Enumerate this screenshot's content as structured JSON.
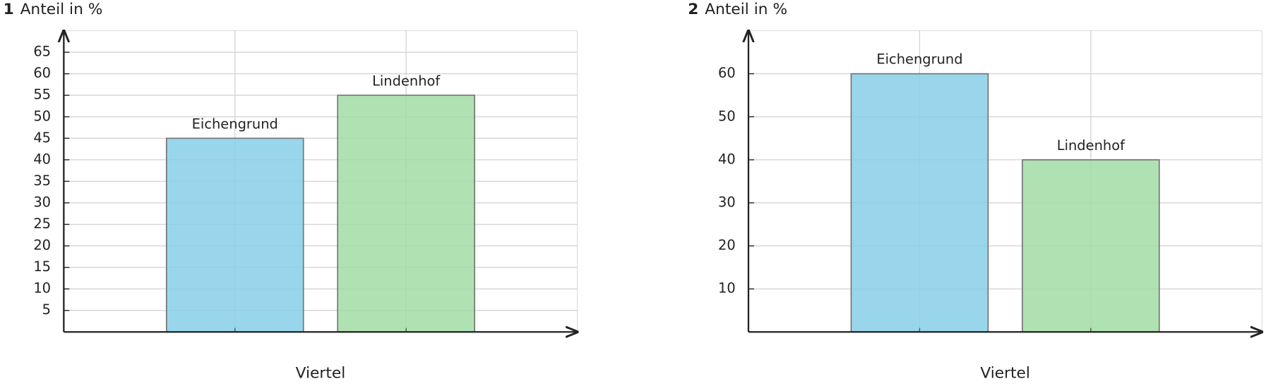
{
  "chart_data": [
    {
      "type": "bar",
      "number": "1",
      "title": "Anteil in %",
      "x_label": "Viertel",
      "categories": [
        "Eichengrund",
        "Lindenhof"
      ],
      "values": [
        45,
        55
      ],
      "colors": [
        "#87cfe9",
        "#a2dca5"
      ],
      "ylim": [
        0,
        70
      ],
      "yticks": [
        5,
        10,
        15,
        20,
        25,
        30,
        35,
        40,
        45,
        50,
        55,
        60,
        65
      ],
      "grid": true
    },
    {
      "type": "bar",
      "number": "2",
      "title": "Anteil in %",
      "x_label": "Viertel",
      "categories": [
        "Eichengrund",
        "Lindenhof"
      ],
      "values": [
        60,
        40
      ],
      "colors": [
        "#87cfe9",
        "#a2dca5"
      ],
      "ylim": [
        0,
        70
      ],
      "yticks": [
        10,
        20,
        30,
        40,
        50,
        60
      ],
      "grid": true
    }
  ]
}
